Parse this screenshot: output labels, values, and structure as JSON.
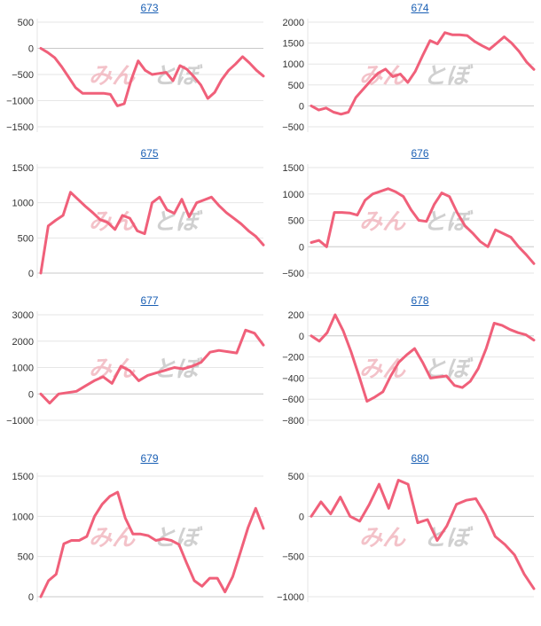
{
  "watermark": {
    "left": "みん",
    "right": "とぼ"
  },
  "colors": {
    "line": "#f0607a",
    "grid": "#e6e6e6",
    "zero": "#c8c8c8",
    "tick": "#333333",
    "title": "#1a5fb4",
    "watermark_pink": "#f2b8c0",
    "watermark_gray": "#c8c8c8"
  },
  "chart_data": [
    {
      "type": "line",
      "title": "673",
      "ylim": [
        -1500,
        500
      ],
      "yticks": [
        500,
        0,
        -500,
        -1000,
        -1500
      ],
      "ytick_labels": [
        "500",
        "0",
        "−500",
        "−1000",
        "−1500"
      ],
      "values": [
        0,
        -80,
        -180,
        -350,
        -550,
        -750,
        -860,
        -860,
        -860,
        -860,
        -880,
        -1100,
        -1060,
        -600,
        -240,
        -420,
        -500,
        -480,
        -460,
        -620,
        -330,
        -400,
        -540,
        -700,
        -960,
        -840,
        -600,
        -420,
        -300,
        -160,
        -280,
        -420,
        -530
      ]
    },
    {
      "type": "line",
      "title": "674",
      "ylim": [
        -500,
        2000
      ],
      "yticks": [
        2000,
        1500,
        1000,
        500,
        0,
        -500
      ],
      "ytick_labels": [
        "2000",
        "1500",
        "1000",
        "500",
        "0",
        "−500"
      ],
      "values": [
        0,
        -100,
        -50,
        -150,
        -200,
        -150,
        200,
        400,
        600,
        780,
        880,
        700,
        760,
        560,
        820,
        1200,
        1560,
        1480,
        1750,
        1700,
        1700,
        1680,
        1540,
        1440,
        1350,
        1500,
        1650,
        1500,
        1300,
        1050,
        870
      ]
    },
    {
      "type": "line",
      "title": "675",
      "ylim": [
        0,
        1500
      ],
      "yticks": [
        1500,
        1000,
        500,
        0
      ],
      "ytick_labels": [
        "1500",
        "1000",
        "500",
        "0"
      ],
      "values": [
        0,
        670,
        750,
        820,
        1150,
        1050,
        950,
        860,
        760,
        720,
        620,
        820,
        780,
        600,
        560,
        1000,
        1080,
        900,
        850,
        1050,
        800,
        1000,
        1040,
        1080,
        960,
        860,
        780,
        700,
        600,
        520,
        400
      ]
    },
    {
      "type": "line",
      "title": "676",
      "ylim": [
        -500,
        1500
      ],
      "yticks": [
        1500,
        1000,
        500,
        0,
        -500
      ],
      "ytick_labels": [
        "1500",
        "1000",
        "500",
        "0",
        "−500"
      ],
      "values": [
        80,
        120,
        0,
        650,
        650,
        640,
        600,
        880,
        1000,
        1050,
        1100,
        1040,
        950,
        700,
        500,
        480,
        800,
        1020,
        950,
        650,
        400,
        260,
        100,
        0,
        320,
        250,
        180,
        0,
        -150,
        -320
      ]
    },
    {
      "type": "line",
      "title": "677",
      "ylim": [
        -1000,
        3000
      ],
      "yticks": [
        3000,
        2000,
        1000,
        0,
        -1000
      ],
      "ytick_labels": [
        "3000",
        "2000",
        "1000",
        "0",
        "−1000"
      ],
      "values": [
        0,
        -350,
        0,
        50,
        100,
        300,
        500,
        650,
        400,
        1050,
        880,
        500,
        700,
        800,
        900,
        1000,
        950,
        1050,
        1200,
        1580,
        1650,
        1600,
        1550,
        2420,
        2300,
        1850
      ]
    },
    {
      "type": "line",
      "title": "678",
      "ylim": [
        -800,
        200
      ],
      "yticks": [
        200,
        0,
        -200,
        -400,
        -600,
        -800
      ],
      "ytick_labels": [
        "200",
        "0",
        "−200",
        "−400",
        "−600",
        "−800"
      ],
      "values": [
        0,
        -50,
        30,
        200,
        50,
        -150,
        -380,
        -620,
        -580,
        -530,
        -380,
        -250,
        -180,
        -120,
        -250,
        -400,
        -390,
        -380,
        -470,
        -490,
        -430,
        -310,
        -120,
        120,
        100,
        60,
        30,
        10,
        -40
      ]
    },
    {
      "type": "line",
      "title": "679",
      "ylim": [
        0,
        1500
      ],
      "yticks": [
        1500,
        1000,
        500,
        0
      ],
      "ytick_labels": [
        "1500",
        "1000",
        "500",
        "0"
      ],
      "values": [
        0,
        200,
        280,
        660,
        700,
        700,
        750,
        1000,
        1150,
        1250,
        1300,
        980,
        780,
        780,
        760,
        700,
        720,
        700,
        650,
        420,
        200,
        130,
        230,
        230,
        60,
        250,
        550,
        860,
        1100,
        850
      ]
    },
    {
      "type": "line",
      "title": "680",
      "ylim": [
        -1000,
        500
      ],
      "yticks": [
        500,
        0,
        -500,
        -1000
      ],
      "ytick_labels": [
        "500",
        "0",
        "−500",
        "−1000"
      ],
      "values": [
        0,
        180,
        30,
        240,
        0,
        -60,
        150,
        400,
        100,
        450,
        400,
        -80,
        -40,
        -300,
        -120,
        150,
        200,
        220,
        20,
        -250,
        -350,
        -480,
        -720,
        -900
      ]
    }
  ]
}
